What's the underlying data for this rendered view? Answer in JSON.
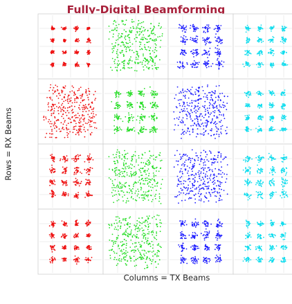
{
  "chart_data": {
    "type": "scatter",
    "title": "Fully-Digital Beamforming",
    "xlabel": "Columns = TX Beams",
    "ylabel": "Rows = RX Beams",
    "grid": true,
    "layout": {
      "rows": 4,
      "cols": 4
    },
    "subplot_axis": {
      "xlim": [
        -1.5,
        1.5
      ],
      "ylim": [
        -1.5,
        1.5
      ]
    },
    "colors": {
      "strong": "#ee1111",
      "weak": "#22dd22",
      "peak": "#1a1aff",
      "side": "#11ddee"
    },
    "constellation_points": [
      -1,
      -0.333,
      0.333,
      1
    ],
    "subplots": [
      {
        "row": 1,
        "col": 1,
        "color_key": "strong",
        "spread": 0.05
      },
      {
        "row": 1,
        "col": 2,
        "color_key": "weak",
        "spread": 0.32
      },
      {
        "row": 1,
        "col": 3,
        "color_key": "peak",
        "spread": 0.11
      },
      {
        "row": 1,
        "col": 4,
        "color_key": "side",
        "spread": 0.07
      },
      {
        "row": 2,
        "col": 1,
        "color_key": "strong",
        "spread": 0.3
      },
      {
        "row": 2,
        "col": 2,
        "color_key": "weak",
        "spread": 0.1
      },
      {
        "row": 2,
        "col": 3,
        "color_key": "peak",
        "spread": 0.3
      },
      {
        "row": 2,
        "col": 4,
        "color_key": "side",
        "spread": 0.07
      },
      {
        "row": 3,
        "col": 1,
        "color_key": "strong",
        "spread": 0.09
      },
      {
        "row": 3,
        "col": 2,
        "color_key": "weak",
        "spread": 0.3
      },
      {
        "row": 3,
        "col": 3,
        "color_key": "peak",
        "spread": 0.26
      },
      {
        "row": 3,
        "col": 4,
        "color_key": "side",
        "spread": 0.1
      },
      {
        "row": 4,
        "col": 1,
        "color_key": "strong",
        "spread": 0.07
      },
      {
        "row": 4,
        "col": 2,
        "color_key": "weak",
        "spread": 0.3
      },
      {
        "row": 4,
        "col": 3,
        "color_key": "peak",
        "spread": 0.1
      },
      {
        "row": 4,
        "col": 4,
        "color_key": "side",
        "spread": 0.08
      }
    ]
  }
}
